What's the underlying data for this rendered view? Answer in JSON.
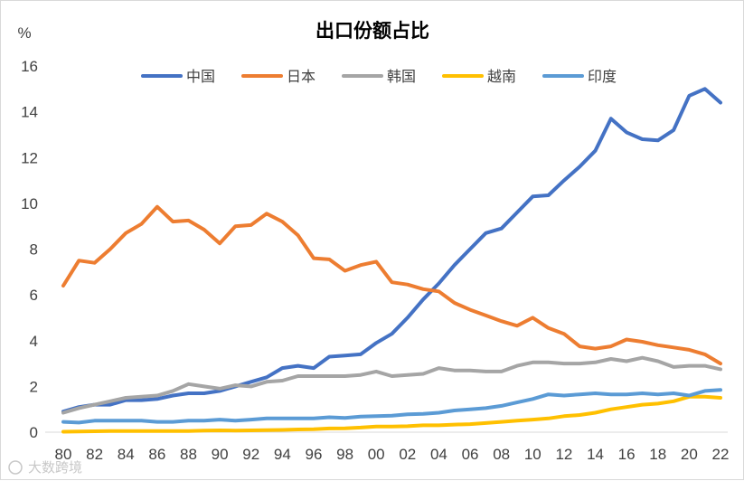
{
  "watermark": "大数跨境",
  "chart_data": {
    "type": "line",
    "title": "出口份额占比",
    "ylabel": "%",
    "xlabel": "",
    "ylim": [
      0,
      16
    ],
    "yticks": [
      0,
      2,
      4,
      6,
      8,
      10,
      12,
      14,
      16
    ],
    "xticks": [
      "80",
      "82",
      "84",
      "86",
      "88",
      "90",
      "92",
      "94",
      "96",
      "98",
      "00",
      "02",
      "04",
      "06",
      "08",
      "10",
      "12",
      "14",
      "16",
      "18",
      "20",
      "22"
    ],
    "x": [
      1980,
      1981,
      1982,
      1983,
      1984,
      1985,
      1986,
      1987,
      1988,
      1989,
      1990,
      1991,
      1992,
      1993,
      1994,
      1995,
      1996,
      1997,
      1998,
      1999,
      2000,
      2001,
      2002,
      2003,
      2004,
      2005,
      2006,
      2007,
      2008,
      2009,
      2010,
      2011,
      2012,
      2013,
      2014,
      2015,
      2016,
      2017,
      2018,
      2019,
      2020,
      2021,
      2022
    ],
    "grid": false,
    "legend_position": "top",
    "series": [
      {
        "name": "中国",
        "color": "#4472C4",
        "values": [
          0.9,
          1.1,
          1.2,
          1.2,
          1.4,
          1.4,
          1.45,
          1.6,
          1.7,
          1.7,
          1.8,
          2.0,
          2.2,
          2.4,
          2.8,
          2.9,
          2.8,
          3.3,
          3.35,
          3.4,
          3.9,
          4.3,
          5.0,
          5.8,
          6.5,
          7.3,
          8.0,
          8.7,
          8.9,
          9.6,
          10.3,
          10.35,
          11.0,
          11.6,
          12.3,
          13.7,
          13.1,
          12.8,
          12.75,
          13.2,
          14.7,
          15.0,
          14.4
        ]
      },
      {
        "name": "日本",
        "color": "#ED7D31",
        "values": [
          6.4,
          7.5,
          7.4,
          8.0,
          8.7,
          9.1,
          9.85,
          9.2,
          9.25,
          8.85,
          8.25,
          9.0,
          9.05,
          9.55,
          9.2,
          8.6,
          7.6,
          7.55,
          7.05,
          7.3,
          7.45,
          6.55,
          6.45,
          6.25,
          6.15,
          5.65,
          5.35,
          5.1,
          4.85,
          4.65,
          5.0,
          4.55,
          4.3,
          3.75,
          3.65,
          3.75,
          4.05,
          3.95,
          3.8,
          3.7,
          3.6,
          3.4,
          3.0
        ]
      },
      {
        "name": "韩国",
        "color": "#A5A5A5",
        "values": [
          0.85,
          1.05,
          1.2,
          1.35,
          1.5,
          1.55,
          1.6,
          1.8,
          2.1,
          2.0,
          1.9,
          2.05,
          2.0,
          2.2,
          2.25,
          2.45,
          2.45,
          2.45,
          2.45,
          2.5,
          2.65,
          2.45,
          2.5,
          2.55,
          2.8,
          2.7,
          2.7,
          2.65,
          2.65,
          2.9,
          3.05,
          3.05,
          3.0,
          3.0,
          3.05,
          3.2,
          3.1,
          3.25,
          3.1,
          2.85,
          2.9,
          2.9,
          2.75
        ]
      },
      {
        "name": "越南",
        "color": "#FFC000",
        "values": [
          0.02,
          0.03,
          0.04,
          0.05,
          0.05,
          0.05,
          0.05,
          0.05,
          0.05,
          0.07,
          0.08,
          0.07,
          0.08,
          0.09,
          0.1,
          0.12,
          0.13,
          0.16,
          0.17,
          0.2,
          0.25,
          0.25,
          0.26,
          0.3,
          0.3,
          0.33,
          0.35,
          0.4,
          0.45,
          0.5,
          0.55,
          0.6,
          0.7,
          0.75,
          0.85,
          1.0,
          1.1,
          1.2,
          1.25,
          1.35,
          1.55,
          1.55,
          1.5
        ]
      },
      {
        "name": "印度",
        "color": "#5B9BD5",
        "values": [
          0.45,
          0.42,
          0.5,
          0.5,
          0.5,
          0.5,
          0.45,
          0.45,
          0.5,
          0.5,
          0.55,
          0.5,
          0.55,
          0.6,
          0.6,
          0.6,
          0.6,
          0.65,
          0.62,
          0.68,
          0.7,
          0.72,
          0.78,
          0.8,
          0.85,
          0.95,
          1.0,
          1.05,
          1.15,
          1.3,
          1.45,
          1.65,
          1.6,
          1.65,
          1.7,
          1.65,
          1.65,
          1.7,
          1.65,
          1.7,
          1.6,
          1.8,
          1.85
        ]
      }
    ]
  }
}
